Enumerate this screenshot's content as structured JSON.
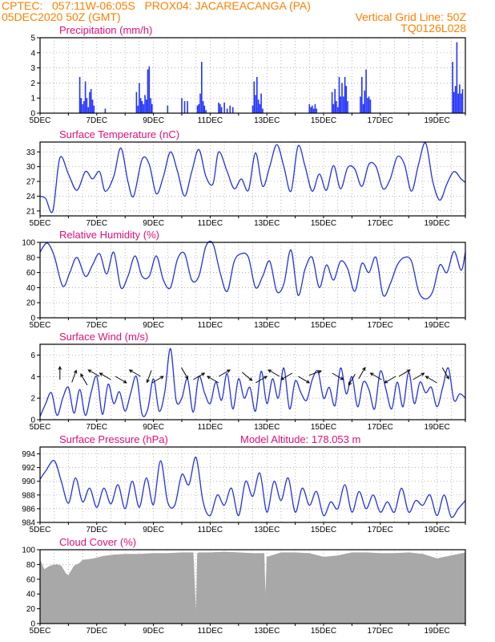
{
  "header": {
    "line1_left": "CPTEC:   057:11W-06:05S   PROX04: JACAREACANGA (PA)",
    "line2_left": "05DEC2020 50Z (GMT)",
    "line2_right": "Vertical Grid Line: 50Z",
    "line3_right": "TQ0126L028"
  },
  "colors": {
    "header": "#ff8000",
    "panel_title": "#e0107a",
    "series_line": "#2233dd",
    "bar": "#2233ff",
    "cloud": "#a8a8a8",
    "wind_arrow": "#000000",
    "grid": "#999999"
  },
  "chart_data": [
    {
      "id": "precip",
      "type": "bar",
      "title": "Precipitation (mm/h)",
      "x_tick_labels": [
        "5DEC",
        "7DEC",
        "9DEC",
        "11DEC",
        "13DEC",
        "15DEC",
        "17DEC",
        "19DEC"
      ],
      "x_range_days": [
        5,
        20
      ],
      "ylim": [
        0,
        5
      ],
      "y_ticks": [
        0,
        1,
        2,
        3,
        4,
        5
      ],
      "grid": true,
      "x": [
        6.4,
        6.45,
        6.5,
        6.55,
        6.6,
        6.65,
        6.7,
        6.75,
        6.8,
        6.85,
        6.9,
        7.3,
        8.4,
        8.45,
        8.5,
        8.55,
        8.6,
        8.65,
        8.7,
        8.75,
        8.8,
        8.85,
        8.9,
        8.95,
        9.5,
        10.0,
        10.1,
        10.2,
        10.55,
        10.6,
        10.65,
        10.7,
        10.75,
        10.8,
        10.85,
        11.3,
        11.35,
        11.4,
        11.5,
        11.6,
        11.7,
        11.8,
        12.5,
        12.55,
        12.6,
        12.65,
        12.7,
        12.75,
        12.8,
        12.85,
        14.5,
        14.55,
        14.6,
        14.65,
        14.7,
        14.75,
        15.3,
        15.35,
        15.4,
        15.45,
        15.5,
        15.55,
        15.6,
        15.65,
        15.7,
        15.75,
        15.8,
        15.85,
        16.3,
        16.35,
        16.4,
        16.45,
        16.5,
        16.55,
        16.6,
        16.65,
        19.55,
        19.6,
        19.65,
        19.7,
        19.75,
        19.8,
        19.85,
        19.9
      ],
      "values": [
        2.4,
        1.0,
        0.6,
        0.8,
        2.1,
        1.0,
        0.4,
        1.4,
        1.6,
        0.9,
        0.5,
        0.3,
        1.4,
        0.5,
        2.0,
        1.0,
        0.8,
        0.6,
        1.2,
        0.9,
        2.9,
        3.1,
        1.0,
        0.6,
        0.5,
        1.0,
        0.8,
        0.8,
        0.5,
        0.6,
        1.3,
        3.4,
        0.8,
        0.5,
        0.2,
        0.7,
        0.6,
        0.4,
        0.7,
        0.3,
        0.5,
        0.4,
        0.5,
        2.1,
        1.2,
        2.4,
        0.9,
        0.6,
        1.3,
        0.3,
        0.6,
        0.4,
        0.5,
        0.3,
        0.6,
        0.3,
        1.4,
        0.6,
        1.6,
        0.8,
        0.4,
        2.4,
        1.1,
        2.0,
        1.1,
        2.4,
        1.8,
        0.8,
        1.1,
        2.4,
        0.6,
        1.5,
        2.9,
        1.0,
        1.1,
        0.9,
        3.4,
        1.4,
        1.8,
        4.7,
        1.3,
        1.9,
        1.3,
        1.6
      ]
    },
    {
      "id": "temp",
      "type": "line",
      "title": "Surface Temperature (nC)",
      "x_tick_labels": [
        "5DEC",
        "7DEC",
        "9DEC",
        "11DEC",
        "13DEC",
        "15DEC",
        "17DEC",
        "19DEC"
      ],
      "x_range_days": [
        5,
        20
      ],
      "ylim": [
        20,
        35
      ],
      "y_ticks": [
        21,
        24,
        27,
        30,
        33
      ],
      "grid": true,
      "x": [
        5.0,
        5.2,
        5.45,
        5.7,
        6.0,
        6.3,
        6.6,
        6.85,
        7.1,
        7.3,
        7.6,
        7.85,
        8.1,
        8.3,
        8.6,
        8.85,
        9.1,
        9.35,
        9.6,
        9.85,
        10.1,
        10.35,
        10.6,
        10.85,
        11.1,
        11.3,
        11.6,
        11.85,
        12.1,
        12.35,
        12.6,
        12.85,
        13.1,
        13.35,
        13.6,
        13.85,
        14.1,
        14.35,
        14.6,
        14.85,
        15.1,
        15.35,
        15.6,
        15.85,
        16.1,
        16.35,
        16.6,
        16.85,
        17.1,
        17.35,
        17.6,
        17.85,
        18.1,
        18.35,
        18.6,
        18.85,
        19.1,
        19.35,
        19.6,
        19.85,
        20.0
      ],
      "values": [
        24.0,
        23.5,
        21.0,
        31.8,
        28.5,
        25.2,
        29.0,
        27.5,
        29.0,
        25.0,
        28.0,
        33.8,
        27.0,
        24.0,
        31.5,
        30.5,
        24.5,
        28.0,
        33.0,
        29.0,
        24.0,
        29.0,
        33.5,
        28.0,
        26.5,
        33.0,
        29.0,
        25.5,
        27.5,
        25.2,
        32.8,
        26.0,
        30.0,
        34.5,
        30.0,
        25.0,
        34.2,
        30.0,
        25.0,
        28.5,
        25.2,
        30.2,
        25.5,
        29.8,
        29.5,
        26.0,
        30.5,
        30.0,
        25.5,
        27.5,
        32.0,
        30.5,
        25.0,
        30.5,
        34.8,
        27.0,
        23.2,
        26.5,
        29.0,
        27.5,
        26.8
      ]
    },
    {
      "id": "rh",
      "type": "line",
      "title": "Relative Humidity (%)",
      "x_tick_labels": [
        "5DEC",
        "7DEC",
        "9DEC",
        "11DEC",
        "13DEC",
        "15DEC",
        "17DEC",
        "19DEC"
      ],
      "x_range_days": [
        5,
        20
      ],
      "ylim": [
        0,
        100
      ],
      "y_ticks": [
        0,
        20,
        40,
        60,
        80,
        100
      ],
      "grid": true,
      "x": [
        5.0,
        5.25,
        5.5,
        5.8,
        6.05,
        6.3,
        6.6,
        6.85,
        7.1,
        7.35,
        7.6,
        7.85,
        8.1,
        8.35,
        8.6,
        8.85,
        9.1,
        9.35,
        9.6,
        9.85,
        10.1,
        10.35,
        10.6,
        10.85,
        11.1,
        11.35,
        11.6,
        11.85,
        12.1,
        12.35,
        12.6,
        12.85,
        13.1,
        13.35,
        13.6,
        13.85,
        14.1,
        14.35,
        14.6,
        14.85,
        15.1,
        15.35,
        15.6,
        15.85,
        16.1,
        16.35,
        16.6,
        16.85,
        17.1,
        17.35,
        17.6,
        17.85,
        18.1,
        18.35,
        18.6,
        18.85,
        19.1,
        19.35,
        19.6,
        19.85,
        20.0
      ],
      "values": [
        87,
        99,
        82,
        42,
        60,
        80,
        55,
        70,
        85,
        58,
        87,
        40,
        55,
        82,
        55,
        55,
        82,
        50,
        40,
        78,
        85,
        50,
        55,
        95,
        98,
        60,
        35,
        75,
        85,
        80,
        40,
        55,
        75,
        35,
        45,
        90,
        30,
        65,
        80,
        40,
        70,
        50,
        75,
        65,
        35,
        72,
        60,
        80,
        30,
        45,
        70,
        80,
        75,
        35,
        25,
        35,
        70,
        60,
        88,
        63,
        87
      ]
    },
    {
      "id": "wind",
      "type": "line",
      "title": "Surface Wind (m/s)",
      "x_tick_labels": [
        "5DEC",
        "7DEC",
        "9DEC",
        "11DEC",
        "13DEC",
        "15DEC",
        "17DEC",
        "19DEC"
      ],
      "x_range_days": [
        5,
        20
      ],
      "ylim": [
        0,
        7
      ],
      "y_ticks": [
        0,
        2,
        4,
        6
      ],
      "grid": true,
      "x": [
        5.0,
        5.2,
        5.4,
        5.6,
        5.8,
        6.0,
        6.2,
        6.4,
        6.6,
        6.8,
        7.0,
        7.2,
        7.4,
        7.6,
        7.8,
        8.0,
        8.2,
        8.4,
        8.6,
        8.8,
        9.0,
        9.2,
        9.4,
        9.6,
        9.8,
        10.0,
        10.2,
        10.4,
        10.6,
        10.8,
        11.0,
        11.2,
        11.4,
        11.6,
        11.8,
        12.0,
        12.2,
        12.4,
        12.6,
        12.8,
        13.0,
        13.2,
        13.4,
        13.6,
        13.8,
        14.0,
        14.2,
        14.4,
        14.6,
        14.8,
        15.0,
        15.2,
        15.4,
        15.6,
        15.8,
        16.0,
        16.2,
        16.4,
        16.6,
        16.8,
        17.0,
        17.2,
        17.4,
        17.6,
        17.8,
        18.0,
        18.2,
        18.4,
        18.6,
        18.8,
        19.0,
        19.2,
        19.4,
        19.6,
        19.8,
        20.0
      ],
      "values": [
        0.3,
        1.5,
        2.5,
        0.4,
        2.0,
        3.0,
        0.6,
        2.8,
        0.4,
        2.5,
        4.0,
        0.5,
        3.3,
        1.5,
        2.6,
        0.8,
        2.5,
        4.0,
        0.5,
        1.0,
        3.8,
        0.8,
        2.6,
        6.6,
        1.8,
        2.0,
        3.8,
        0.7,
        4.0,
        2.5,
        1.5,
        3.5,
        1.8,
        4.3,
        1.0,
        3.8,
        2.0,
        3.0,
        0.8,
        4.5,
        1.5,
        3.8,
        2.0,
        4.8,
        1.0,
        3.6,
        2.5,
        1.8,
        3.7,
        4.5,
        2.0,
        3.0,
        1.3,
        4.8,
        2.4,
        4.0,
        1.2,
        3.5,
        2.8,
        1.0,
        4.5,
        2.8,
        1.0,
        3.5,
        1.2,
        4.4,
        1.5,
        3.5,
        2.5,
        3.0,
        1.2,
        3.0,
        4.8,
        1.8,
        2.4,
        2.0
      ],
      "arrows": [
        {
          "x": 5.7,
          "dir_deg": 0
        },
        {
          "x": 6.2,
          "dir_deg": 20
        },
        {
          "x": 6.55,
          "dir_deg": 330
        },
        {
          "x": 6.9,
          "dir_deg": 300
        },
        {
          "x": 7.3,
          "dir_deg": 300
        },
        {
          "x": 7.85,
          "dir_deg": 120
        },
        {
          "x": 8.35,
          "dir_deg": 300
        },
        {
          "x": 8.85,
          "dir_deg": 200
        },
        {
          "x": 9.15,
          "dir_deg": 60
        },
        {
          "x": 10.1,
          "dir_deg": 150
        },
        {
          "x": 10.6,
          "dir_deg": 60
        },
        {
          "x": 11.1,
          "dir_deg": 300
        },
        {
          "x": 11.5,
          "dir_deg": 60
        },
        {
          "x": 12.3,
          "dir_deg": 130
        },
        {
          "x": 12.8,
          "dir_deg": 60
        },
        {
          "x": 13.25,
          "dir_deg": 300
        },
        {
          "x": 13.7,
          "dir_deg": 240
        },
        {
          "x": 14.3,
          "dir_deg": 120
        },
        {
          "x": 14.7,
          "dir_deg": 70
        },
        {
          "x": 15.5,
          "dir_deg": 120
        },
        {
          "x": 16.0,
          "dir_deg": 210
        },
        {
          "x": 16.35,
          "dir_deg": 30
        },
        {
          "x": 16.85,
          "dir_deg": 300
        },
        {
          "x": 17.35,
          "dir_deg": 240
        },
        {
          "x": 17.85,
          "dir_deg": 60
        },
        {
          "x": 18.35,
          "dir_deg": 60
        },
        {
          "x": 18.8,
          "dir_deg": 300
        },
        {
          "x": 19.3,
          "dir_deg": 150
        }
      ]
    },
    {
      "id": "pressure",
      "type": "line",
      "title": "Surface Pressure (hPa)",
      "annotation": "Model Altitude: 178.053 m",
      "x_tick_labels": [
        "5DEC",
        "7DEC",
        "9DEC",
        "11DEC",
        "13DEC",
        "15DEC",
        "17DEC",
        "19DEC"
      ],
      "x_range_days": [
        5,
        20
      ],
      "ylim": [
        984,
        995
      ],
      "y_ticks": [
        984,
        986,
        988,
        990,
        992,
        994
      ],
      "grid": true,
      "x": [
        5.0,
        5.2,
        5.5,
        5.75,
        6.0,
        6.25,
        6.5,
        6.75,
        7.0,
        7.25,
        7.5,
        7.75,
        8.0,
        8.25,
        8.5,
        8.75,
        9.0,
        9.25,
        9.5,
        9.75,
        10.0,
        10.25,
        10.5,
        10.75,
        11.0,
        11.25,
        11.5,
        11.75,
        12.0,
        12.25,
        12.5,
        12.75,
        13.0,
        13.25,
        13.5,
        13.75,
        14.0,
        14.25,
        14.5,
        14.75,
        15.0,
        15.25,
        15.5,
        15.75,
        16.0,
        16.25,
        16.5,
        16.75,
        17.0,
        17.25,
        17.5,
        17.75,
        18.0,
        18.25,
        18.5,
        18.75,
        19.0,
        19.25,
        19.5,
        19.75,
        20.0
      ],
      "values": [
        990.3,
        991.5,
        993.0,
        990.0,
        986.8,
        990.5,
        987.0,
        989.0,
        986.2,
        989.0,
        986.7,
        989.5,
        986.0,
        990.0,
        986.2,
        990.5,
        986.6,
        993.0,
        987.0,
        986.5,
        991.0,
        989.5,
        993.5,
        987.0,
        985.0,
        988.0,
        986.5,
        989.0,
        985.0,
        990.0,
        987.8,
        991.2,
        985.5,
        990.0,
        987.2,
        990.5,
        985.5,
        989.0,
        986.5,
        988.5,
        985.0,
        987.0,
        986.0,
        989.5,
        985.5,
        988.5,
        986.0,
        988.0,
        985.5,
        987.0,
        985.5,
        989.0,
        985.5,
        987.2,
        986.5,
        988.0,
        985.0,
        988.0,
        984.8,
        986.0,
        987.2
      ]
    },
    {
      "id": "cloud",
      "type": "area",
      "title": "Cloud Cover (%)",
      "x_tick_labels": [
        "5DEC",
        "7DEC",
        "9DEC",
        "11DEC",
        "13DEC",
        "15DEC",
        "17DEC",
        "19DEC"
      ],
      "x_range_days": [
        5,
        20
      ],
      "ylim": [
        0,
        100
      ],
      "y_ticks": [
        0,
        20,
        40,
        60,
        80,
        100
      ],
      "grid": true,
      "x": [
        5.0,
        5.15,
        5.3,
        5.45,
        5.6,
        5.75,
        5.9,
        6.0,
        6.2,
        6.4,
        6.5,
        6.7,
        6.9,
        7.2,
        7.6,
        8.0,
        8.5,
        9.0,
        9.5,
        10.0,
        10.4,
        10.5,
        10.55,
        10.6,
        11.0,
        11.5,
        12.0,
        12.5,
        12.9,
        12.95,
        13.0,
        13.5,
        14.0,
        14.5,
        15.0,
        15.5,
        16.0,
        16.5,
        17.0,
        17.5,
        18.0,
        18.5,
        19.0,
        19.5,
        20.0
      ],
      "values": [
        86,
        73,
        77,
        79,
        80,
        78,
        68,
        65,
        78,
        82,
        86,
        87,
        88,
        91,
        93,
        94,
        94,
        95,
        95,
        96,
        96,
        8,
        95,
        96,
        96,
        97,
        96,
        95,
        95,
        30,
        90,
        96,
        96,
        95,
        90,
        92,
        96,
        96,
        95,
        95,
        96,
        94,
        88,
        92,
        96
      ]
    }
  ]
}
